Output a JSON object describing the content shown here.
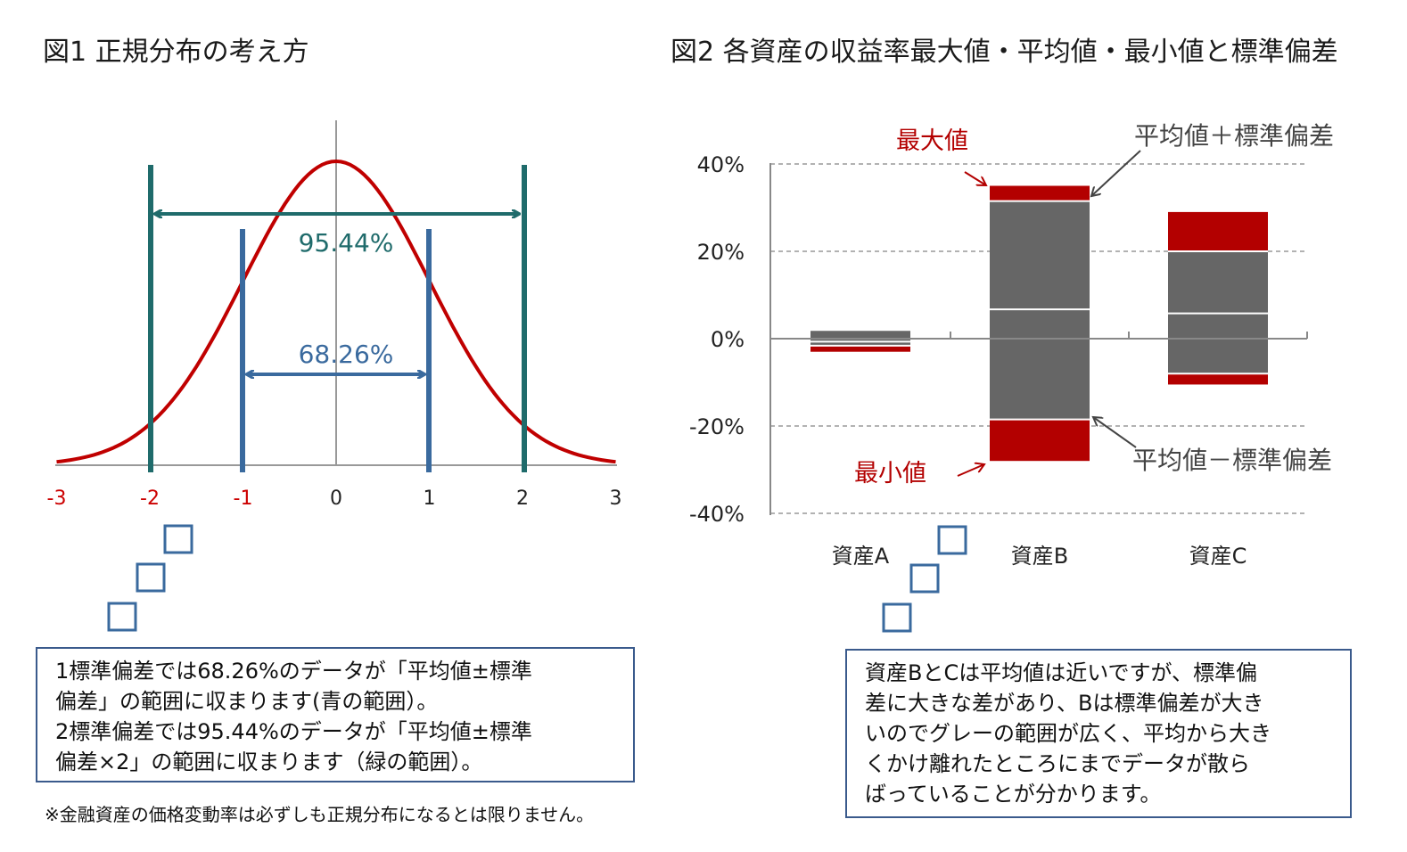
{
  "fig1": {
    "title": "図1 正規分布の考え方",
    "pct_outer": "95.44%",
    "pct_inner": "68.26%"
  },
  "fig2": {
    "title": "図2 各資産の収益率最大値・平均値・最小値と標準偏差",
    "label_max": "最大値",
    "label_min": "最小値",
    "label_upper": "平均値＋標準偏差",
    "label_lower": "平均値－標準偏差"
  },
  "box1": {
    "lines": [
      "1標準偏差では68.26%のデータが「平均値±標準",
      "偏差」の範囲に収まります(青の範囲）。",
      "2標準偏差では95.44%のデータが「平均値±標準",
      "偏差×2」の範囲に収まります（緑の範囲）。"
    ]
  },
  "box2": {
    "lines": [
      "資産BとCは平均値は近いですが、標準偏",
      "差に大きな差があり、Bは標準偏差が大き",
      "いのでグレーの範囲が広く、平均から大き",
      "くかけ離れたところにまでデータが散ら",
      "ばっていることが分かります。"
    ]
  },
  "note": "※金融資産の価格変動率は必ずしも正規分布になるとは限りません。",
  "colors": {
    "curve": "#c00000",
    "green": "#1f6b6b",
    "blue": "#3a6a9e",
    "bar_red": "#b30000",
    "bar_gray": "#666666",
    "grid": "#888888"
  },
  "chart_data": [
    {
      "type": "line",
      "title": "図1 正規分布の考え方",
      "x_ticks": [
        "-3",
        "-2",
        "-1",
        "0",
        "1",
        "2",
        "3"
      ],
      "x_tick_colors": [
        "#cc0000",
        "#cc0000",
        "#cc0000",
        "#222222",
        "#222222",
        "#222222",
        "#222222"
      ],
      "xlim": [
        -3,
        3
      ],
      "series": [
        {
          "values": "standard normal density, x from -3 to 3"
        }
      ],
      "bands": [
        {
          "from": -2,
          "to": 2,
          "label": "95.44%",
          "color": "#1f6b6b"
        },
        {
          "from": -1,
          "to": 1,
          "label": "68.26%",
          "color": "#3a6a9e"
        }
      ]
    },
    {
      "type": "bar",
      "title": "図2 各資産の収益率最大値・平均値・最小値と標準偏差",
      "categories": [
        "資産A",
        "資産B",
        "資産C"
      ],
      "ylim": [
        -40,
        40
      ],
      "y_ticks": [
        "40%",
        "20%",
        "0%",
        "-20%",
        "-40%"
      ],
      "y_tick_values": [
        40,
        20,
        0,
        -20,
        -40
      ],
      "grid": true,
      "assets": [
        {
          "name": "資産A",
          "max": 2,
          "mean_plus_sd": 2,
          "mean": -0.7,
          "mean_minus_sd": -1.6,
          "min": -3
        },
        {
          "name": "資産B",
          "max": 35,
          "mean_plus_sd": 31.5,
          "mean": 6.7,
          "mean_minus_sd": -18.5,
          "min": -28
        },
        {
          "name": "資産C",
          "max": 29,
          "mean_plus_sd": 20,
          "mean": 5.8,
          "mean_minus_sd": -8,
          "min": -10.5
        }
      ]
    }
  ]
}
